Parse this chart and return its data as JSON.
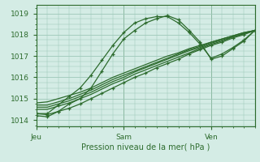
{
  "title": "Pression niveau de la mer( hPa )",
  "bg_color": "#d4ece5",
  "grid_color": "#9ec8b8",
  "line_color": "#2d6b2d",
  "ylim": [
    1013.7,
    1019.4
  ],
  "yticks": [
    1014,
    1015,
    1016,
    1017,
    1018,
    1019
  ],
  "xtick_labels": [
    "Jeu",
    "Sam",
    "Ven"
  ],
  "xtick_positions": [
    0,
    48,
    96
  ],
  "total_hours": 120,
  "lines": [
    {
      "x": [
        0,
        6,
        12,
        18,
        24,
        30,
        36,
        42,
        48,
        54,
        60,
        66,
        72,
        78,
        84,
        90,
        96,
        102,
        108,
        114,
        120
      ],
      "y": [
        1014.3,
        1014.25,
        1014.4,
        1014.55,
        1014.75,
        1015.0,
        1015.25,
        1015.5,
        1015.75,
        1016.0,
        1016.2,
        1016.45,
        1016.65,
        1016.85,
        1017.1,
        1017.3,
        1017.5,
        1017.65,
        1017.85,
        1018.0,
        1018.2
      ],
      "marker": true,
      "lw": 0.9
    },
    {
      "x": [
        0,
        6,
        12,
        18,
        24,
        30,
        36,
        42,
        48,
        54,
        60,
        66,
        72,
        78,
        84,
        90,
        96,
        102,
        108,
        114,
        120
      ],
      "y": [
        1014.5,
        1014.5,
        1014.65,
        1014.8,
        1015.0,
        1015.2,
        1015.45,
        1015.7,
        1015.9,
        1016.15,
        1016.35,
        1016.55,
        1016.75,
        1016.95,
        1017.15,
        1017.35,
        1017.55,
        1017.7,
        1017.9,
        1018.05,
        1018.2
      ],
      "marker": false,
      "lw": 0.9
    },
    {
      "x": [
        0,
        6,
        12,
        18,
        24,
        30,
        36,
        42,
        48,
        54,
        60,
        66,
        72,
        78,
        84,
        90,
        96,
        102,
        108,
        114,
        120
      ],
      "y": [
        1014.6,
        1014.6,
        1014.75,
        1014.9,
        1015.1,
        1015.3,
        1015.55,
        1015.8,
        1016.0,
        1016.25,
        1016.45,
        1016.65,
        1016.85,
        1017.05,
        1017.25,
        1017.4,
        1017.6,
        1017.75,
        1017.9,
        1018.05,
        1018.2
      ],
      "marker": false,
      "lw": 0.9
    },
    {
      "x": [
        0,
        6,
        12,
        18,
        24,
        30,
        36,
        42,
        48,
        54,
        60,
        66,
        72,
        78,
        84,
        90,
        96,
        102,
        108,
        114,
        120
      ],
      "y": [
        1014.7,
        1014.7,
        1014.85,
        1015.0,
        1015.2,
        1015.4,
        1015.65,
        1015.9,
        1016.1,
        1016.3,
        1016.5,
        1016.7,
        1016.9,
        1017.1,
        1017.3,
        1017.45,
        1017.65,
        1017.8,
        1017.95,
        1018.1,
        1018.2
      ],
      "marker": false,
      "lw": 0.9
    },
    {
      "x": [
        0,
        6,
        12,
        18,
        24,
        30,
        36,
        42,
        48,
        54,
        60,
        66,
        72,
        78,
        84,
        90,
        96,
        102,
        108,
        114,
        120
      ],
      "y": [
        1014.8,
        1014.85,
        1015.0,
        1015.15,
        1015.3,
        1015.5,
        1015.75,
        1016.0,
        1016.2,
        1016.4,
        1016.6,
        1016.8,
        1017.0,
        1017.15,
        1017.35,
        1017.5,
        1017.65,
        1017.8,
        1017.95,
        1018.1,
        1018.2
      ],
      "marker": false,
      "lw": 0.9
    },
    {
      "x": [
        0,
        6,
        12,
        18,
        24,
        30,
        36,
        42,
        48,
        54,
        60,
        66,
        72,
        78,
        84,
        90,
        96,
        102,
        108,
        114,
        120
      ],
      "y": [
        1014.3,
        1014.3,
        1014.7,
        1015.1,
        1015.5,
        1016.1,
        1016.8,
        1017.5,
        1018.1,
        1018.55,
        1018.75,
        1018.85,
        1018.85,
        1018.55,
        1018.1,
        1017.55,
        1016.9,
        1017.1,
        1017.4,
        1017.75,
        1018.2
      ],
      "marker": true,
      "lw": 0.9
    },
    {
      "x": [
        0,
        6,
        12,
        18,
        24,
        30,
        36,
        42,
        48,
        54,
        60,
        66,
        72,
        78,
        84,
        90,
        96,
        102,
        108,
        114,
        120
      ],
      "y": [
        1014.2,
        1014.15,
        1014.4,
        1014.75,
        1015.0,
        1015.5,
        1016.3,
        1017.1,
        1017.8,
        1018.2,
        1018.55,
        1018.75,
        1018.9,
        1018.7,
        1018.2,
        1017.65,
        1016.85,
        1017.0,
        1017.35,
        1017.7,
        1018.2
      ],
      "marker": true,
      "lw": 0.9
    }
  ]
}
